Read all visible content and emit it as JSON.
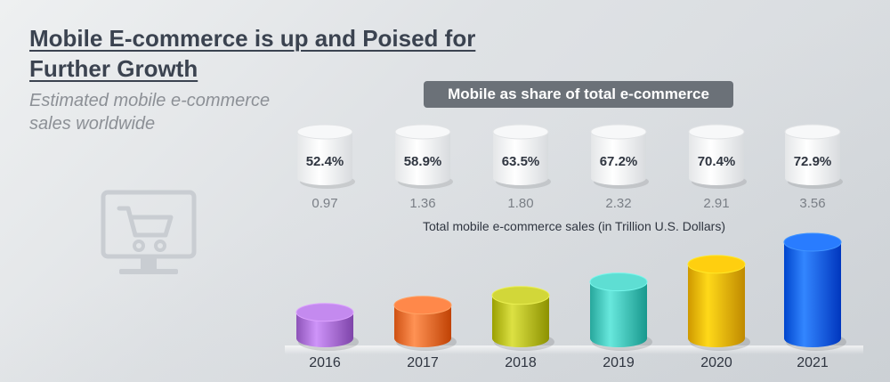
{
  "title": "Mobile E-commerce is up and Poised for Further Growth",
  "subtitle": "Estimated mobile e-commerce sales worldwide",
  "share_label": "Mobile as share of total e-commerce",
  "sales_caption": "Total mobile e-commerce sales (in Trillion U.S. Dollars)",
  "icon": "shopping-cart-monitor-icon",
  "chart_data": {
    "type": "bar",
    "categories": [
      "2016",
      "2017",
      "2018",
      "2019",
      "2020",
      "2021"
    ],
    "series": [
      {
        "name": "Total mobile e-commerce sales (in Trillion U.S. Dollars)",
        "values": [
          0.97,
          1.36,
          1.8,
          2.32,
          2.91,
          3.56
        ]
      },
      {
        "name": "Mobile as share of total e-commerce",
        "values": [
          "52.4%",
          "58.9%",
          "63.5%",
          "67.2%",
          "70.4%",
          "72.9%"
        ]
      }
    ],
    "bar_colors": [
      "#b57be0",
      "#f7793b",
      "#c3c82a",
      "#4fcfc4",
      "#f6c000",
      "#1a6df5"
    ],
    "share_color": "#ffffff",
    "title": "",
    "xlabel": "",
    "ylabel": "",
    "ylim": [
      0,
      3.56
    ]
  }
}
